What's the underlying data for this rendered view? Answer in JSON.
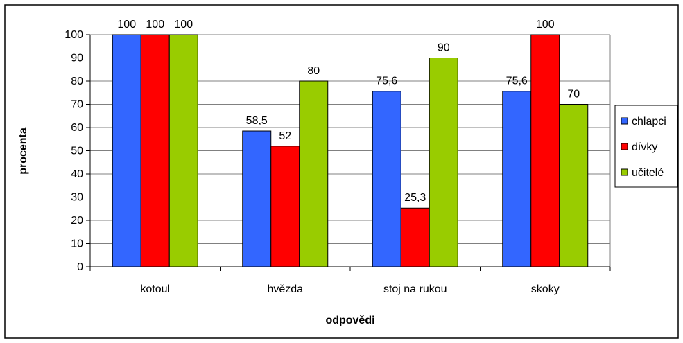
{
  "chart_data": {
    "type": "bar",
    "categories": [
      "kotoul",
      "hvězda",
      "stoj na rukou",
      "skoky"
    ],
    "series": [
      {
        "name": "chlapci",
        "values": [
          100,
          58.5,
          75.6,
          75.6
        ],
        "labels": [
          "100",
          "58,5",
          "75,6",
          "75,6"
        ],
        "color": "#3366FF"
      },
      {
        "name": "dívky",
        "values": [
          100,
          52,
          25.3,
          100
        ],
        "labels": [
          "100",
          "52",
          "25,3",
          "100"
        ],
        "color": "#FF0000"
      },
      {
        "name": "učitelé",
        "values": [
          100,
          80,
          90,
          70
        ],
        "labels": [
          "100",
          "80",
          "90",
          "70"
        ],
        "color": "#99CC00"
      }
    ],
    "xlabel": "odpovědi",
    "ylabel": "procenta",
    "ylim": [
      0,
      100
    ],
    "yticks": [
      0,
      10,
      20,
      30,
      40,
      50,
      60,
      70,
      80,
      90,
      100
    ],
    "grid": true,
    "legend_position": "right"
  }
}
